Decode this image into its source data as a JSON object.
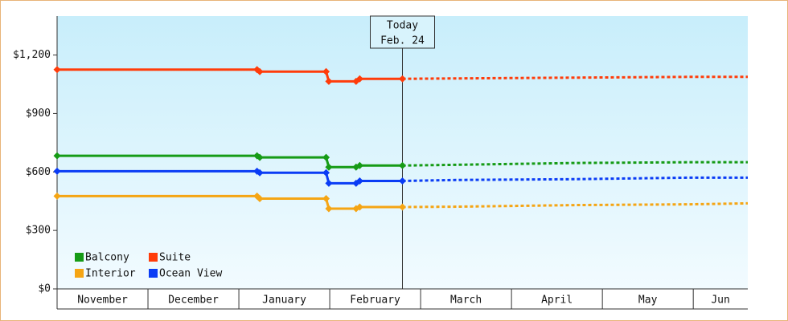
{
  "chart_data": {
    "type": "line",
    "categories": [
      "November",
      "December",
      "January",
      "February",
      "March",
      "April",
      "May",
      "Jun"
    ],
    "xlim": [
      0,
      7.6
    ],
    "xticks": [
      1,
      2,
      3,
      4,
      5,
      6,
      7
    ],
    "ylim": [
      0,
      1400
    ],
    "yticks": [
      {
        "value": 0,
        "label": "$0"
      },
      {
        "value": 300,
        "label": "$300"
      },
      {
        "value": 600,
        "label": "$600"
      },
      {
        "value": 900,
        "label": "$900"
      },
      {
        "value": 1200,
        "label": "$1,200"
      }
    ],
    "x": [
      0,
      2.2,
      2.23,
      2.96,
      2.99,
      3.29,
      3.33,
      3.8
    ],
    "forecast_x": [
      3.8,
      4.42,
      5.7,
      6.97,
      7.6
    ],
    "today": {
      "x": 3.8,
      "label": "Today",
      "date": "Feb. 24"
    },
    "legend": "lower left",
    "series": [
      {
        "name": "Balcony",
        "color": "#169b16",
        "values": [
          683,
          683,
          675,
          675,
          625,
          625,
          633,
          633
        ],
        "forecast": [
          633,
          637,
          646,
          650,
          650
        ]
      },
      {
        "name": "Suite",
        "color": "#ff3c0a",
        "values": [
          1125,
          1125,
          1115,
          1115,
          1065,
          1065,
          1078,
          1078
        ],
        "forecast": [
          1078,
          1080,
          1084,
          1088,
          1088
        ]
      },
      {
        "name": "Interior",
        "color": "#f5a514",
        "values": [
          476,
          476,
          463,
          463,
          412,
          412,
          420,
          420
        ],
        "forecast": [
          420,
          422,
          430,
          434,
          439
        ]
      },
      {
        "name": "Ocean View",
        "color": "#0a3cf5",
        "values": [
          604,
          604,
          596,
          596,
          542,
          542,
          554,
          554
        ],
        "forecast": [
          554,
          559,
          563,
          571,
          571
        ]
      }
    ]
  }
}
